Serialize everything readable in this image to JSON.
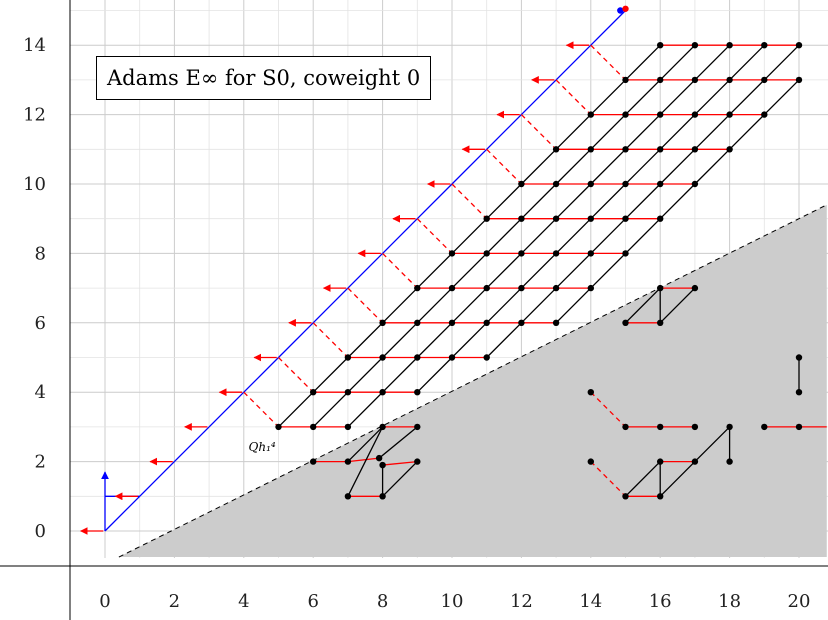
{
  "chart_data": {
    "type": "scatter",
    "title": "Adams E∞ for S0, coweight 0",
    "xlabel": "",
    "ylabel": "",
    "xlim": [
      -1,
      21
    ],
    "ylim": [
      -0.8,
      15
    ],
    "grid": true,
    "x_ticks": [
      0,
      2,
      4,
      6,
      8,
      10,
      12,
      14,
      16,
      18,
      20
    ],
    "y_ticks": [
      0,
      2,
      4,
      6,
      8,
      10,
      12,
      14
    ],
    "annotation": "Qh₁⁴",
    "annotation_at": [
      5,
      3
    ],
    "vanishing_line": [
      [
        0.4,
        -0.75
      ],
      [
        20.8,
        9.4
      ]
    ],
    "colors": {
      "points": "#000000",
      "h0_tower": "#0000ff",
      "differentials": "#ff0000",
      "grid": "#cccccc",
      "shade": "#cccccc"
    },
    "blue_tower": {
      "points": [
        [
          0,
          0
        ],
        [
          0,
          1
        ],
        [
          1,
          1
        ],
        [
          2,
          2
        ],
        [
          3,
          3
        ],
        [
          4,
          4
        ],
        [
          5,
          5
        ],
        [
          6,
          6
        ],
        [
          7,
          7
        ],
        [
          8,
          8
        ],
        [
          9,
          9
        ],
        [
          10,
          10
        ],
        [
          11,
          11
        ],
        [
          12,
          12
        ],
        [
          13,
          13
        ],
        [
          14,
          14
        ]
      ],
      "arrow_up_from": [
        0,
        1
      ]
    },
    "lattice": {
      "u_range": [
        5,
        14
      ],
      "k_range": [
        0,
        5
      ],
      "black_points_mark": "h1 lines diagonal, red lines horizontal"
    },
    "extra_points": [
      [
        14.9,
        15
      ],
      [
        15.4,
        15.7
      ]
    ],
    "lower_structures": {
      "points": [
        [
          6,
          2
        ],
        [
          7,
          2
        ],
        [
          7.9,
          2.1
        ],
        [
          8,
          1.9
        ],
        [
          9,
          2
        ],
        [
          7,
          1
        ],
        [
          8,
          1
        ],
        [
          8,
          3
        ],
        [
          9,
          3
        ],
        [
          15,
          6
        ],
        [
          16,
          6
        ],
        [
          16,
          7
        ],
        [
          17,
          7
        ],
        [
          14,
          4
        ],
        [
          15,
          3
        ],
        [
          16,
          3
        ],
        [
          17,
          3
        ],
        [
          14,
          2
        ],
        [
          15,
          1
        ],
        [
          16,
          1
        ],
        [
          16,
          2
        ],
        [
          17,
          2
        ],
        [
          18,
          3
        ],
        [
          18,
          2
        ],
        [
          19,
          3
        ],
        [
          20,
          3
        ],
        [
          20,
          4
        ],
        [
          20,
          5
        ]
      ]
    }
  }
}
